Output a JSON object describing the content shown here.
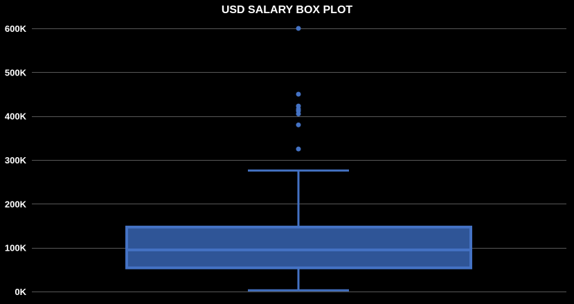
{
  "chart_data": {
    "type": "box",
    "title": "USD SALARY BOX PLOT",
    "xlabel": "",
    "ylabel": "",
    "ylim": [
      0,
      600000
    ],
    "y_ticks": [
      0,
      100000,
      200000,
      300000,
      400000,
      500000,
      600000
    ],
    "y_tick_labels": [
      "0K",
      "100K",
      "200K",
      "300K",
      "400K",
      "500K",
      "600K"
    ],
    "grid": true,
    "legend": "none",
    "box": {
      "whisker_low": 2859,
      "q1": 54000,
      "median": 95000,
      "q3": 147000,
      "whisker_high": 276000,
      "outliers": [
        325000,
        380000,
        405000,
        412000,
        416000,
        423000,
        450000,
        600000
      ]
    },
    "colors": {
      "background": "#000000",
      "box_fill": "#2f5597",
      "box_stroke": "#4472c4",
      "grid": "#595959",
      "text": "#ffffff"
    }
  }
}
